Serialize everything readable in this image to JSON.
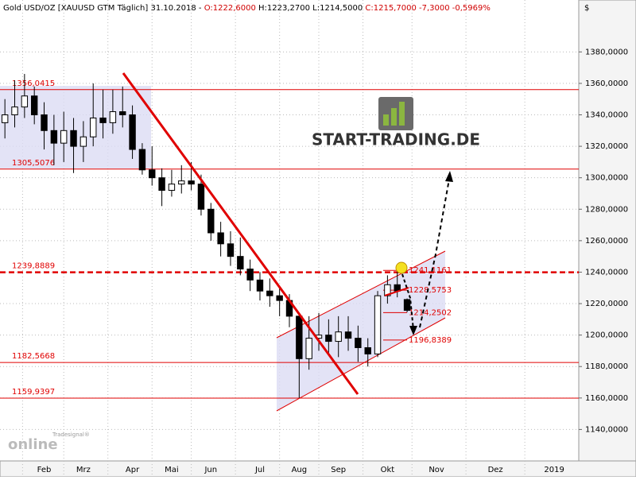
{
  "header": {
    "parts": [
      {
        "text": "Gold USD/OZ [XAUUSD GTM  Täglich] 31.10.2018 - ",
        "color": "#000000"
      },
      {
        "text": "O:1222,6000",
        "color": "#d00000"
      },
      {
        "text": " H:1223,2700 L:1214,5000 ",
        "color": "#000000"
      },
      {
        "text": "C:1215,7000 -7,3000 -0,5969%",
        "color": "#d00000"
      }
    ]
  },
  "logo": {
    "text": "START-TRADING.DE",
    "watermark_top": "Tradesignal®",
    "watermark": "online"
  },
  "chart_data": {
    "type": "candlestick",
    "currency": "$",
    "categories": [
      null,
      null,
      null,
      null,
      "Feb",
      null,
      null,
      null,
      "Mrz",
      null,
      null,
      null,
      null,
      "Apr",
      null,
      null,
      null,
      "Mai",
      null,
      null,
      null,
      "Jun",
      null,
      null,
      null,
      null,
      "Jul",
      null,
      null,
      null,
      "Aug",
      null,
      null,
      null,
      "Sep",
      null,
      null,
      null,
      null,
      "Okt",
      null,
      null,
      null,
      null,
      "Nov",
      null,
      null,
      null,
      null,
      null,
      "Dez",
      null,
      null,
      null,
      null,
      null,
      "2019",
      null,
      null
    ],
    "series": [
      {
        "name": "XAUUSD",
        "open": [
          1335,
          1340,
          1345,
          1352,
          1340,
          1330,
          1322,
          1330,
          1320,
          1326,
          1338,
          1335,
          1342,
          1340,
          1318,
          1305,
          1300,
          1292,
          1296,
          1298,
          1296,
          1280,
          1265,
          1258,
          1250,
          1242,
          1235,
          1228,
          1225,
          1222,
          1212,
          1185,
          1198,
          1200,
          1196,
          1202,
          1198,
          1192,
          1188,
          1225,
          1232,
          1222.6,
          null,
          null,
          null,
          null,
          null,
          null,
          null,
          null,
          null,
          null,
          null,
          null,
          null,
          null,
          null,
          null,
          null
        ],
        "high": [
          1350,
          1362,
          1366,
          1358,
          1348,
          1340,
          1342,
          1338,
          1336,
          1360,
          1356,
          1356,
          1358,
          1346,
          1322,
          1320,
          1306,
          1305,
          1308,
          1310,
          1302,
          1284,
          1272,
          1266,
          1262,
          1248,
          1240,
          1236,
          1230,
          1226,
          1214,
          1212,
          1214,
          1210,
          1212,
          1212,
          1206,
          1198,
          1228,
          1238,
          1243,
          1223.27,
          null,
          null,
          null,
          null,
          null,
          null,
          null,
          null,
          null,
          null,
          null,
          null,
          null,
          null,
          null,
          null,
          null
        ],
        "low": [
          1325,
          1332,
          1338,
          1334,
          1318,
          1308,
          1310,
          1303,
          1310,
          1320,
          1325,
          1328,
          1332,
          1312,
          1302,
          1295,
          1282,
          1288,
          1290,
          1292,
          1276,
          1260,
          1250,
          1244,
          1238,
          1228,
          1222,
          1218,
          1212,
          1205,
          1160,
          1178,
          1190,
          1188,
          1186,
          1190,
          1183,
          1180,
          1186,
          1220,
          1224,
          1214.5,
          null,
          null,
          null,
          null,
          null,
          null,
          null,
          null,
          null,
          null,
          null,
          null,
          null,
          null,
          null,
          null,
          null
        ],
        "close": [
          1340,
          1345,
          1352,
          1340,
          1330,
          1322,
          1330,
          1320,
          1326,
          1338,
          1335,
          1342,
          1340,
          1318,
          1305,
          1300,
          1292,
          1296,
          1298,
          1296,
          1280,
          1265,
          1258,
          1250,
          1242,
          1235,
          1228,
          1225,
          1222,
          1212,
          1185,
          1198,
          1200,
          1196,
          1202,
          1198,
          1192,
          1188,
          1225,
          1232,
          1228,
          1215.7,
          null,
          null,
          null,
          null,
          null,
          null,
          null,
          null,
          null,
          null,
          null,
          null,
          null,
          null,
          null,
          null,
          null
        ]
      }
    ],
    "ylim": [
      1120,
      1413
    ],
    "yticks": [
      {
        "value": 1140,
        "label": "1140,0000"
      },
      {
        "value": 1160,
        "label": "1160,0000"
      },
      {
        "value": 1180,
        "label": "1180,0000"
      },
      {
        "value": 1200,
        "label": "1200,0000"
      },
      {
        "value": 1220,
        "label": "1220,0000"
      },
      {
        "value": 1240,
        "label": "1240,0000"
      },
      {
        "value": 1260,
        "label": "1260,0000"
      },
      {
        "value": 1280,
        "label": "1280,0000"
      },
      {
        "value": 1300,
        "label": "1300,0000"
      },
      {
        "value": 1320,
        "label": "1320,0000"
      },
      {
        "value": 1340,
        "label": "1340,0000"
      },
      {
        "value": 1360,
        "label": "1360,0000"
      },
      {
        "value": 1380,
        "label": "1380,0000"
      }
    ],
    "levels": [
      {
        "value": 1356.0415,
        "label": "1356,0415",
        "dashed": false
      },
      {
        "value": 1305.5076,
        "label": "1305,5076",
        "dashed": false
      },
      {
        "value": 1239.8889,
        "label": "1239,8889",
        "dashed": true
      },
      {
        "value": 1182.5668,
        "label": "1182,5668",
        "dashed": false
      },
      {
        "value": 1159.9397,
        "label": "1159,9397",
        "dashed": false
      }
    ],
    "annotations": [
      {
        "value": 1241.1161,
        "label": "1241,1161"
      },
      {
        "value": 1228.5753,
        "label": "1228,5753"
      },
      {
        "value": 1214.2502,
        "label": "1214,2502"
      },
      {
        "value": 1196.8389,
        "label": "1196,8389"
      }
    ],
    "grid": true,
    "level_color": "#e00000"
  }
}
